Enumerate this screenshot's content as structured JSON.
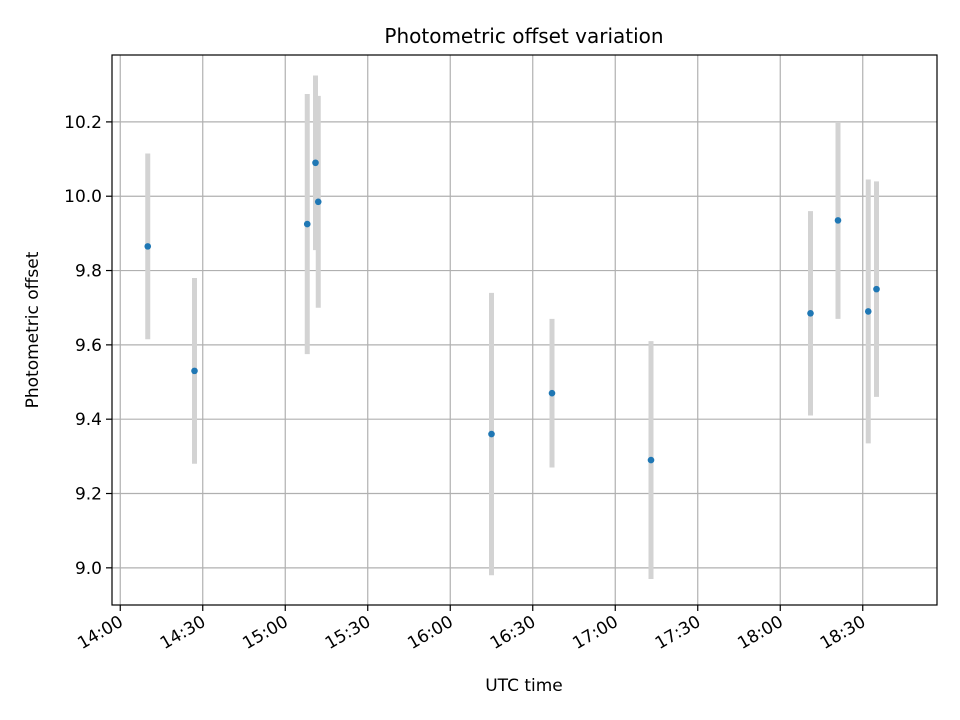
{
  "chart_data": {
    "type": "scatter",
    "title": "Photometric offset variation",
    "xlabel": "UTC time",
    "ylabel": "Photometric offset",
    "xlim": [
      "13:57",
      "18:57"
    ],
    "ylim": [
      8.9,
      10.38
    ],
    "x_ticks": [
      "14:00",
      "14:30",
      "15:00",
      "15:30",
      "16:00",
      "16:30",
      "17:00",
      "17:30",
      "18:00",
      "18:30"
    ],
    "y_ticks": [
      "9.0",
      "9.2",
      "9.4",
      "9.6",
      "9.8",
      "10.0",
      "10.2"
    ],
    "grid": true,
    "series": [
      {
        "marker_color": "#1f77b4",
        "errorbar_color": "#d3d3d3",
        "points": [
          {
            "x": "14:10",
            "y": 9.865,
            "err": 0.25
          },
          {
            "x": "14:27",
            "y": 9.53,
            "err": 0.25
          },
          {
            "x": "15:08",
            "y": 9.925,
            "err": 0.35
          },
          {
            "x": "15:11",
            "y": 10.09,
            "err": 0.235
          },
          {
            "x": "15:12",
            "y": 9.985,
            "err": 0.285
          },
          {
            "x": "16:15",
            "y": 9.36,
            "err": 0.38
          },
          {
            "x": "16:37",
            "y": 9.47,
            "err": 0.2
          },
          {
            "x": "17:13",
            "y": 9.29,
            "err": 0.32
          },
          {
            "x": "18:11",
            "y": 9.685,
            "err": 0.275
          },
          {
            "x": "18:21",
            "y": 9.935,
            "err": 0.265
          },
          {
            "x": "18:32",
            "y": 9.69,
            "err": 0.355
          },
          {
            "x": "18:35",
            "y": 9.75,
            "err": 0.29
          }
        ]
      }
    ]
  }
}
